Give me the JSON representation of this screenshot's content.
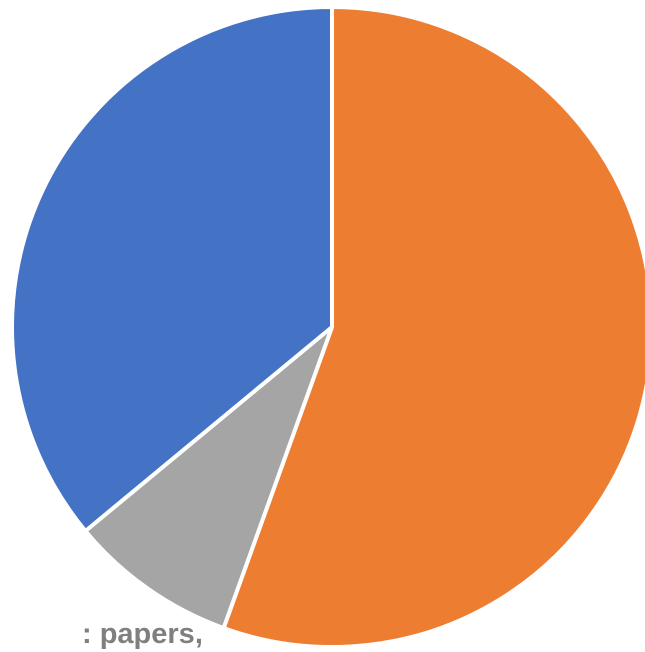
{
  "chart_data": {
    "type": "pie",
    "start_angle_deg": 0,
    "direction": "clockwise",
    "slices": [
      {
        "value": 55.5,
        "color": "#ED7D31"
      },
      {
        "value": 8.5,
        "color": "#A5A5A5"
      },
      {
        "value": 36.0,
        "color": "#4472C4"
      }
    ],
    "legend": "none"
  },
  "visible_text_fragment": ": papers,"
}
